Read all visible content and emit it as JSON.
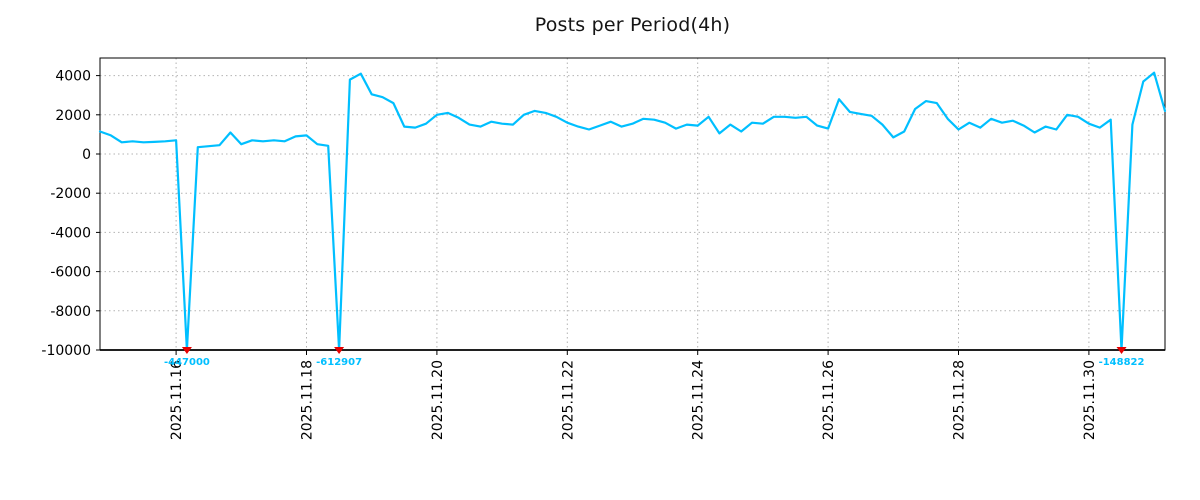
{
  "title": "Posts per Period(4h)",
  "colors": {
    "line": "#00BFFF",
    "marker": "#e60000",
    "annotation": "#00BFFF",
    "grid": "#b3b3b3",
    "axis": "#000000",
    "tick_text": "#000000"
  },
  "chart_data": {
    "type": "line",
    "title": "Posts per Period(4h)",
    "xlabel": "",
    "ylabel": "",
    "interval_hours": 4,
    "x_start": "2025.11.14 20:00",
    "ylim": [
      -10000,
      4900
    ],
    "y_ticks": [
      4000,
      2000,
      0,
      -2000,
      -4000,
      -6000,
      -8000,
      -10000
    ],
    "x_tick_labels": [
      "2025.11.16",
      "2025.11.18",
      "2025.11.20",
      "2025.11.22",
      "2025.11.24",
      "2025.11.26",
      "2025.11.28",
      "2025.11.30"
    ],
    "x_tick_indices": [
      7,
      19,
      31,
      43,
      55,
      67,
      79,
      91
    ],
    "grid": true,
    "legend": "none",
    "values": [
      1150,
      950,
      600,
      650,
      600,
      620,
      650,
      700,
      -447000,
      350,
      400,
      450,
      1100,
      500,
      700,
      650,
      700,
      650,
      900,
      950,
      500,
      420,
      -612907,
      3800,
      4100,
      3050,
      2900,
      2600,
      1400,
      1350,
      1550,
      2000,
      2100,
      1850,
      1500,
      1400,
      1650,
      1550,
      1500,
      2000,
      2200,
      2100,
      1900,
      1600,
      1400,
      1250,
      1450,
      1650,
      1400,
      1550,
      1800,
      1750,
      1600,
      1300,
      1500,
      1450,
      1900,
      1050,
      1500,
      1150,
      1600,
      1550,
      1900,
      1900,
      1850,
      1900,
      1450,
      1300,
      2800,
      2150,
      2050,
      1950,
      1500,
      850,
      1150,
      2300,
      2700,
      2600,
      1800,
      1250,
      1600,
      1350,
      1800,
      1600,
      1700,
      1450,
      1100,
      1400,
      1250,
      2000,
      1900,
      1550,
      1350,
      1750,
      -148822,
      1500,
      3700,
      4150,
      2200
    ],
    "annotations": [
      {
        "index": 8,
        "label": "-447000",
        "value": -447000
      },
      {
        "index": 22,
        "label": "-612907",
        "value": -612907
      },
      {
        "index": 94,
        "label": "-148822",
        "value": -148822
      }
    ]
  }
}
